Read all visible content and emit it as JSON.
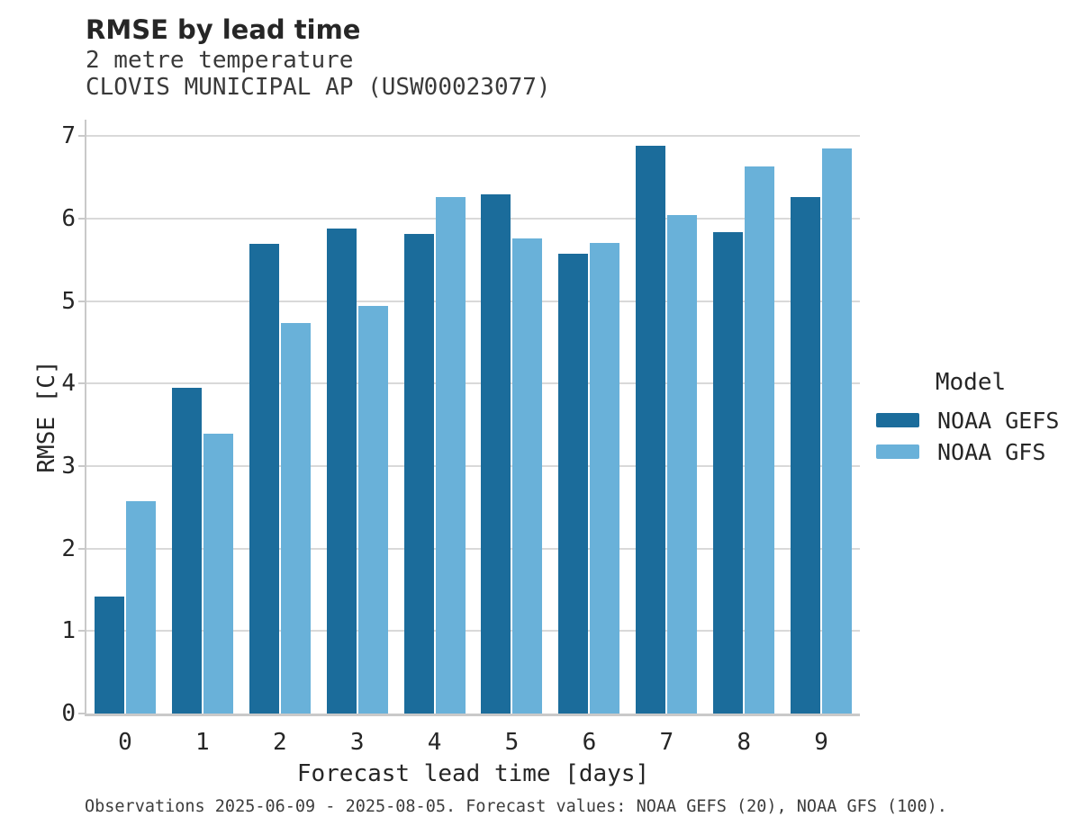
{
  "title": "RMSE by lead time",
  "subtitle": [
    "2 metre temperature",
    "CLOVIS MUNICIPAL AP (USW00023077)"
  ],
  "footer": "Observations 2025-06-09 - 2025-08-05. Forecast values: NOAA GEFS (20), NOAA GFS (100).",
  "legend": {
    "title": "Model",
    "items": [
      {
        "label": "NOAA GEFS",
        "color": "#1b6c9b"
      },
      {
        "label": "NOAA GFS",
        "color": "#69b1d9"
      }
    ]
  },
  "colors": {
    "gefs_dark_blue": "#1b6c9b",
    "gfs_light_blue": "#69b1d9",
    "gridline_gray": "#d9d9d9",
    "spine_gray": "#c9c9c9"
  },
  "chart_data": {
    "type": "bar",
    "title": "RMSE by lead time",
    "subtitle": [
      "2 metre temperature",
      "CLOVIS MUNICIPAL AP (USW00023077)"
    ],
    "categories": [
      "0",
      "1",
      "2",
      "3",
      "4",
      "5",
      "6",
      "7",
      "8",
      "9"
    ],
    "series": [
      {
        "name": "NOAA GEFS",
        "color": "#1b6c9b",
        "values": [
          1.42,
          3.95,
          5.7,
          5.88,
          5.81,
          6.3,
          5.57,
          6.88,
          5.84,
          6.26
        ]
      },
      {
        "name": "NOAA GFS",
        "color": "#69b1d9",
        "values": [
          2.57,
          3.39,
          4.73,
          4.94,
          6.26,
          5.76,
          5.71,
          6.04,
          6.63,
          6.85
        ]
      }
    ],
    "xlabel": "Forecast lead time [days]",
    "ylabel": "RMSE [C]",
    "ylim": [
      0,
      7.2
    ],
    "yticks": [
      0,
      1,
      2,
      3,
      4,
      5,
      6,
      7
    ],
    "grid": true,
    "legend_title": "Model",
    "legend_position": "right",
    "footnote": "Observations 2025-06-09 - 2025-08-05. Forecast values: NOAA GEFS (20), NOAA GFS (100)."
  }
}
